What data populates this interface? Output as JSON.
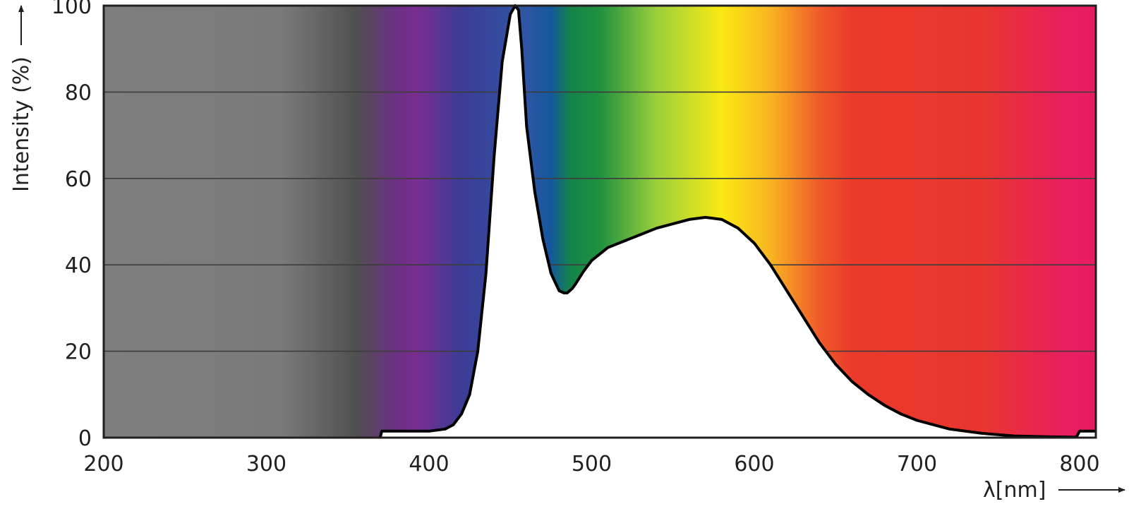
{
  "chart_data": {
    "type": "area",
    "title": "",
    "xlabel": "λ[nm]",
    "ylabel": "Intensity (%)",
    "xlim": [
      200,
      810
    ],
    "ylim": [
      0,
      100
    ],
    "x_ticks": [
      200,
      300,
      400,
      500,
      600,
      700,
      800
    ],
    "y_ticks": [
      0,
      20,
      40,
      60,
      80,
      100
    ],
    "grid": "horizontal",
    "legend": "none",
    "background": "wavelength color spectrum (gray UV, violet, blue, green, yellow, orange, red)",
    "spectrum_colors": [
      {
        "nm": 200,
        "color": "#7e7e7e"
      },
      {
        "nm": 310,
        "color": "#7a7a7a"
      },
      {
        "nm": 355,
        "color": "#505050"
      },
      {
        "nm": 380,
        "color": "#6c2f86"
      },
      {
        "nm": 392,
        "color": "#7a2e90"
      },
      {
        "nm": 420,
        "color": "#3c3c96"
      },
      {
        "nm": 460,
        "color": "#2f56a4"
      },
      {
        "nm": 475,
        "color": "#15579c"
      },
      {
        "nm": 487,
        "color": "#14844a"
      },
      {
        "nm": 505,
        "color": "#1f9140"
      },
      {
        "nm": 540,
        "color": "#9ccf3c"
      },
      {
        "nm": 580,
        "color": "#fbe913"
      },
      {
        "nm": 610,
        "color": "#f8b422"
      },
      {
        "nm": 640,
        "color": "#ef5a2a"
      },
      {
        "nm": 660,
        "color": "#eb3a2b"
      },
      {
        "nm": 740,
        "color": "#e8362f"
      },
      {
        "nm": 790,
        "color": "#e81f5e"
      },
      {
        "nm": 810,
        "color": "#e81c63"
      }
    ],
    "series": [
      {
        "x": [
          370,
          371,
          380,
          400,
          410,
          415,
          420,
          425,
          430,
          435,
          440,
          445,
          450,
          453,
          455,
          457,
          460,
          465,
          470,
          475,
          480,
          483,
          485,
          488,
          490,
          495,
          500,
          510,
          520,
          530,
          540,
          550,
          560,
          570,
          580,
          590,
          600,
          610,
          620,
          630,
          640,
          650,
          660,
          670,
          680,
          690,
          700,
          720,
          740,
          760,
          780,
          798,
          800,
          802,
          810
        ],
        "y": [
          0,
          1.5,
          1.5,
          1.5,
          2,
          3,
          5.5,
          10,
          20,
          38,
          65,
          87,
          98,
          100,
          99,
          90,
          72,
          57,
          46,
          38,
          34,
          33.5,
          33.5,
          34.5,
          35.5,
          38.5,
          41,
          44,
          45.5,
          47,
          48.5,
          49.5,
          50.5,
          51,
          50.5,
          48.5,
          45,
          40,
          34,
          28,
          22,
          17,
          13,
          10,
          7.5,
          5.5,
          4,
          2,
          1,
          0.4,
          0.2,
          0.1,
          1.5,
          1.5,
          1.5
        ],
        "line_color": "#000000",
        "fill_color": "#ffffff"
      }
    ]
  }
}
